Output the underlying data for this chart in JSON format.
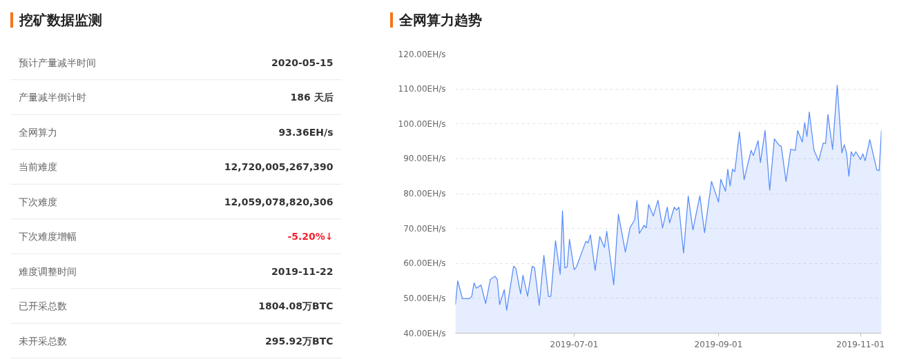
{
  "chart_data": [
    {
      "type": "other",
      "title": "挖矿数据监测",
      "categories": [
        "预计产量减半时间",
        "产量减半倒计时",
        "全网算力",
        "当前难度",
        "下次难度",
        "下次难度增幅",
        "难度调整时间",
        "已开采总数",
        "未开采总数"
      ],
      "value_labels": [
        "2020-05-15",
        "186 天后",
        "93.36EH/s",
        "12,720,005,267,390",
        "12,059,078,820,306",
        "-5.20%↓",
        "2019-11-22",
        "1804.08万BTC",
        "295.92万BTC"
      ]
    },
    {
      "type": "area",
      "title": "全网算力趋势",
      "line_style": "solid",
      "grid": "y",
      "xlim": [
        "2019-05-11",
        "2019-11-10"
      ],
      "xticks": [
        "2019-07-01",
        "2019-09-01",
        "2019-11-01"
      ],
      "ylim": [
        40,
        120
      ],
      "yticks": [
        {
          "value": 40,
          "label": "40.00EH/s"
        },
        {
          "value": 50,
          "label": "50.00EH/s"
        },
        {
          "value": 60,
          "label": "60.00EH/s"
        },
        {
          "value": 70,
          "label": "70.00EH/s"
        },
        {
          "value": 80,
          "label": "80.00EH/s"
        },
        {
          "value": 90,
          "label": "90.00EH/s"
        },
        {
          "value": 100,
          "label": "100.00EH/s"
        },
        {
          "value": 110,
          "label": "110.00EH/s"
        },
        {
          "value": 120,
          "label": "120.00EH/s"
        }
      ],
      "x": [
        "2019-05-11",
        "2019-05-12",
        "2019-05-13",
        "2019-05-14",
        "2019-05-17",
        "2019-05-18",
        "2019-05-19",
        "2019-05-20",
        "2019-05-22",
        "2019-05-24",
        "2019-05-26",
        "2019-05-28",
        "2019-05-29",
        "2019-05-30",
        "2019-06-01",
        "2019-06-02",
        "2019-06-05",
        "2019-06-06",
        "2019-06-08",
        "2019-06-09",
        "2019-06-11",
        "2019-06-13",
        "2019-06-14",
        "2019-06-16",
        "2019-06-18",
        "2019-06-20",
        "2019-06-21",
        "2019-06-23",
        "2019-06-25",
        "2019-06-26",
        "2019-06-27",
        "2019-06-28",
        "2019-06-29",
        "2019-07-01",
        "2019-07-02",
        "2019-07-06",
        "2019-07-07",
        "2019-07-08",
        "2019-07-10",
        "2019-07-12",
        "2019-07-14",
        "2019-07-15",
        "2019-07-18",
        "2019-07-20",
        "2019-07-23",
        "2019-07-25",
        "2019-07-27",
        "2019-07-28",
        "2019-07-29",
        "2019-07-31",
        "2019-08-01",
        "2019-08-02",
        "2019-08-04",
        "2019-08-06",
        "2019-08-08",
        "2019-08-10",
        "2019-08-11",
        "2019-08-13",
        "2019-08-14",
        "2019-08-15",
        "2019-08-17",
        "2019-08-19",
        "2019-08-21",
        "2019-08-24",
        "2019-08-26",
        "2019-08-29",
        "2019-09-01",
        "2019-09-02",
        "2019-09-04",
        "2019-09-05",
        "2019-09-06",
        "2019-09-07",
        "2019-09-08",
        "2019-09-10",
        "2019-09-12",
        "2019-09-15",
        "2019-09-16",
        "2019-09-18",
        "2019-09-19",
        "2019-09-21",
        "2019-09-23",
        "2019-09-25",
        "2019-09-27",
        "2019-09-28",
        "2019-09-30",
        "2019-10-02",
        "2019-10-04",
        "2019-10-05",
        "2019-10-07",
        "2019-10-08",
        "2019-10-09",
        "2019-10-10",
        "2019-10-12",
        "2019-10-14",
        "2019-10-16",
        "2019-10-17",
        "2019-10-18",
        "2019-10-20",
        "2019-10-22",
        "2019-10-24",
        "2019-10-25",
        "2019-10-26",
        "2019-10-27",
        "2019-10-28",
        "2019-10-29",
        "2019-10-30",
        "2019-11-01",
        "2019-11-02",
        "2019-11-03",
        "2019-11-05",
        "2019-11-08",
        "2019-11-09",
        "2019-11-10"
      ],
      "series": [
        {
          "color": "#5b8ff9",
          "values": [
            48.2,
            55.0,
            52.5,
            49.9,
            49.9,
            50.5,
            54.4,
            52.9,
            53.8,
            48.5,
            55.4,
            56.3,
            55.4,
            48.2,
            52.5,
            46.6,
            59.2,
            58.5,
            51.3,
            56.6,
            50.6,
            59.2,
            58.7,
            48.0,
            62.3,
            50.5,
            50.6,
            66.5,
            56.9,
            75.1,
            58.7,
            59.0,
            66.9,
            58.2,
            59.0,
            66.3,
            65.9,
            68.2,
            58.0,
            67.7,
            64.6,
            69.2,
            53.9,
            74.1,
            63.3,
            70.2,
            72.5,
            78.0,
            68.6,
            70.9,
            70.2,
            76.9,
            73.6,
            78.1,
            70.2,
            76.1,
            71.6,
            76.1,
            75.3,
            76.1,
            63.0,
            79.3,
            69.6,
            79.4,
            68.8,
            83.5,
            77.6,
            84.1,
            80.7,
            87.0,
            82.2,
            87.0,
            86.3,
            97.7,
            84.0,
            92.4,
            90.9,
            95.2,
            88.9,
            98.1,
            81.0,
            95.7,
            93.9,
            93.5,
            83.5,
            92.7,
            92.4,
            98.1,
            94.8,
            100.3,
            96.4,
            103.4,
            92.5,
            89.4,
            94.5,
            94.4,
            102.7,
            92.7,
            111.1,
            91.7,
            94.0,
            91.7,
            85.0,
            92.0,
            90.7,
            92.0,
            89.8,
            91.4,
            89.4,
            95.5,
            86.8,
            86.6,
            98.1
          ]
        }
      ]
    }
  ]
}
